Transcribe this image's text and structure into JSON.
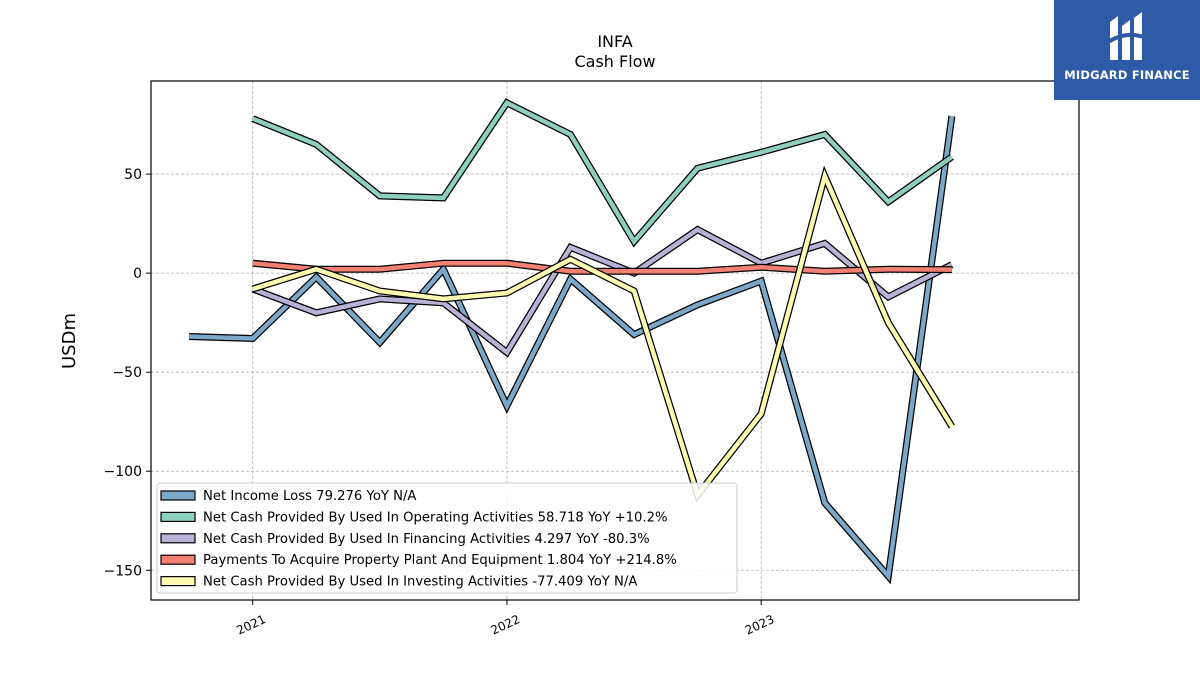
{
  "chart_data": {
    "type": "line",
    "title": "INFA",
    "subtitle": "Cash Flow",
    "ylabel": "USDm",
    "xlabel": "",
    "ylim": [
      -165,
      97
    ],
    "xlim": [
      2020.6,
      2024.25
    ],
    "yticks": [
      50,
      0,
      -50,
      -100,
      -150
    ],
    "ytick_labels": [
      "50",
      "0",
      "−50",
      "−100",
      "−150"
    ],
    "xticks": [
      2021,
      2022,
      2023
    ],
    "xtick_labels": [
      "2021",
      "2022",
      "2023"
    ],
    "grid": true,
    "legend_position": "lower-left",
    "series": [
      {
        "name": "Net Income Loss",
        "legend": "Net Income Loss  79.276 YoY N/A",
        "color": "#7ba7c9",
        "x": [
          2020.75,
          2021.0,
          2021.25,
          2021.5,
          2021.75,
          2022.0,
          2022.25,
          2022.5,
          2022.75,
          2023.0,
          2023.25,
          2023.5,
          2023.75
        ],
        "y": [
          -32,
          -33,
          -2,
          -35,
          2,
          -67,
          -3,
          -31,
          -16,
          -4,
          -116,
          -153,
          79.276
        ]
      },
      {
        "name": "Net Cash Provided By Used In Operating Activities",
        "legend": "Net Cash Provided By Used In Operating Activities  58.718 YoY +10.2%",
        "color": "#8ecfbf",
        "x": [
          2021.0,
          2021.25,
          2021.5,
          2021.75,
          2022.0,
          2022.25,
          2022.5,
          2022.75,
          2023.0,
          2023.25,
          2023.5,
          2023.75
        ],
        "y": [
          78,
          65,
          39,
          38,
          86,
          70,
          16,
          53,
          61,
          70,
          36,
          58.718
        ]
      },
      {
        "name": "Net Cash Provided By Used In Financing Activities",
        "legend": "Net Cash Provided By Used In Financing Activities  4.297 YoY -80.3%",
        "color": "#b8b3d6",
        "x": [
          2021.0,
          2021.25,
          2021.5,
          2021.75,
          2022.0,
          2022.25,
          2022.5,
          2022.75,
          2023.0,
          2023.25,
          2023.5,
          2023.75
        ],
        "y": [
          -8,
          -20,
          -13,
          -15,
          -40,
          13,
          0,
          22,
          5,
          15,
          -12,
          4.297
        ]
      },
      {
        "name": "Payments To Acquire Property Plant And Equipment",
        "legend": "Payments To Acquire Property Plant And Equipment  1.804 YoY +214.8%",
        "color": "#f47f73",
        "x": [
          2021.0,
          2021.25,
          2021.5,
          2021.75,
          2022.0,
          2022.25,
          2022.5,
          2022.75,
          2023.0,
          2023.25,
          2023.5,
          2023.75
        ],
        "y": [
          5,
          2,
          2,
          5,
          5,
          1,
          1,
          1,
          3,
          1,
          2,
          1.804
        ]
      },
      {
        "name": "Net Cash Provided By Used In Investing Activities",
        "legend": "Net Cash Provided By Used In Investing Activities  -77.409 YoY N/A",
        "color": "#fdfbb0",
        "x": [
          2021.0,
          2021.25,
          2021.5,
          2021.75,
          2022.0,
          2022.25,
          2022.5,
          2022.75,
          2023.0,
          2023.25,
          2023.5,
          2023.75
        ],
        "y": [
          -8,
          2,
          -9,
          -13,
          -10,
          7,
          -9,
          -112,
          -71,
          49,
          -25,
          -77.409
        ]
      }
    ]
  },
  "logo": {
    "text": "MIDGARD FINANCE",
    "background": "#2f5aa8"
  }
}
